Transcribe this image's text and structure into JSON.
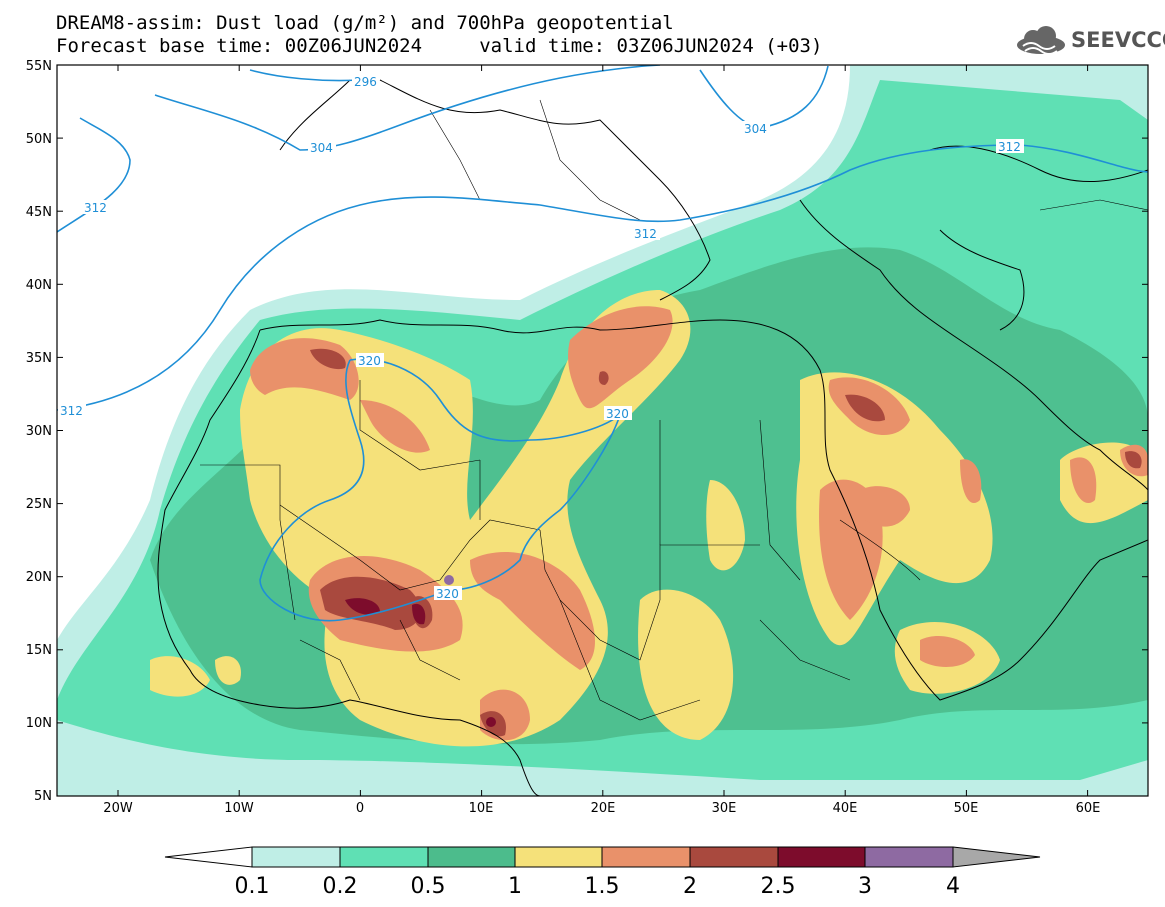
{
  "header": {
    "title_line1": "DREAM8-assim: Dust load (g/m²) and 700hPa geopotential",
    "title_line2": "Forecast base time: 00Z06JUN2024     valid time: 03Z06JUN2024 (+03)",
    "logo_text": "SEEVCCC",
    "logo_icon": "cloud-icon"
  },
  "axes": {
    "lat_labels": [
      "55N",
      "50N",
      "45N",
      "40N",
      "35N",
      "30N",
      "25N",
      "20N",
      "15N",
      "10N",
      "5N"
    ],
    "lon_labels": [
      "20W",
      "10W",
      "0",
      "10E",
      "20E",
      "30E",
      "40E",
      "50E",
      "60E"
    ]
  },
  "colorbar": {
    "labels": [
      "0.1",
      "0.2",
      "0.5",
      "1",
      "1.5",
      "2",
      "2.5",
      "3",
      "4"
    ],
    "colors": [
      "#ffffff",
      "#bfeee6",
      "#5fe0b4",
      "#4cbc8c",
      "#f5e17a",
      "#e9916a",
      "#a9493e",
      "#7d0c2c",
      "#8e6aa2",
      "#a8a8a8"
    ]
  },
  "contours": {
    "labels": [
      "296",
      "304",
      "304",
      "312",
      "312",
      "312",
      "312",
      "320",
      "320",
      "320"
    ],
    "color": "#1f8fd6"
  }
}
